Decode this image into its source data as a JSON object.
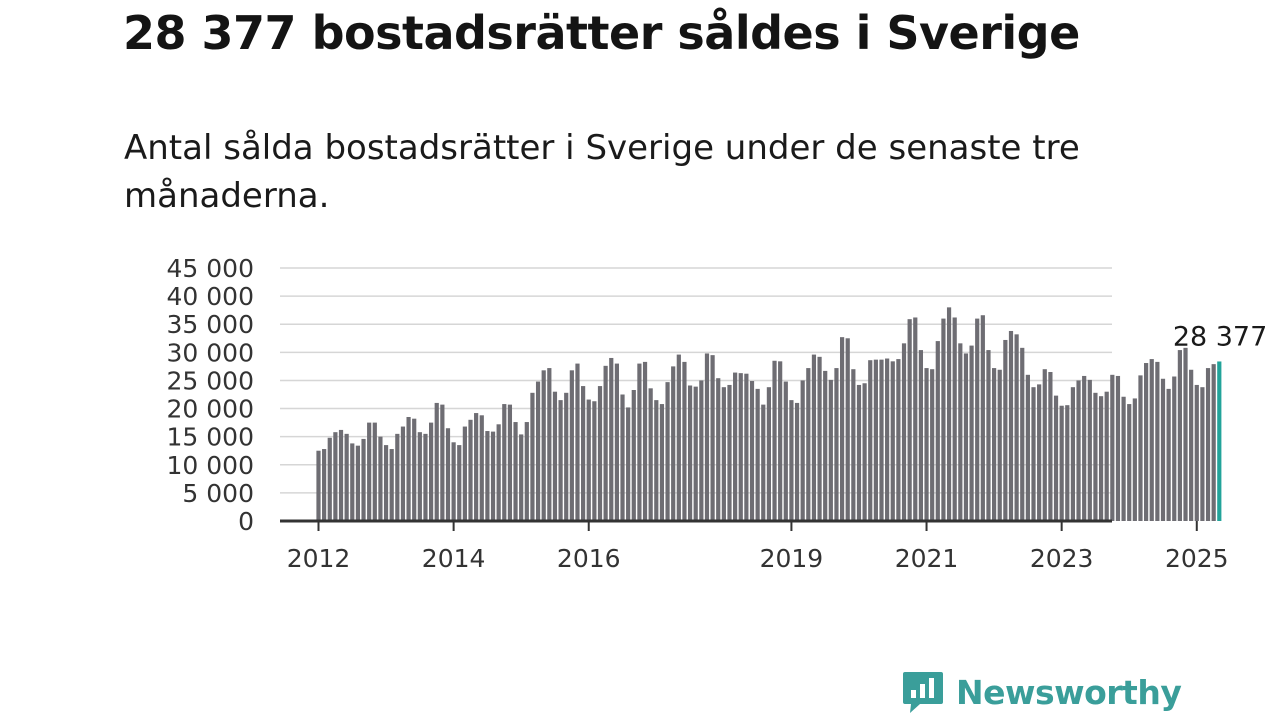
{
  "title": "28 377 bostadsrätter såldes i Sverige",
  "subtitle": "Antal sålda bostadsrätter i Sverige under de senaste tre månaderna.",
  "brand": {
    "name": "Newsworthy",
    "color": "#3a9e9a",
    "icon": "bar-chart-speech-bubble-icon"
  },
  "chart_data": {
    "type": "bar",
    "start": "2012-01",
    "ylim": [
      0,
      45000
    ],
    "yticks": [
      0,
      5000,
      10000,
      15000,
      20000,
      25000,
      30000,
      35000,
      40000,
      45000
    ],
    "ytick_labels": [
      "0",
      "5 000",
      "10 000",
      "15 000",
      "20 000",
      "25 000",
      "30 000",
      "35 000",
      "40 000",
      "45 000"
    ],
    "xticks": [
      "2012",
      "2014",
      "2016",
      "2019",
      "2021",
      "2023",
      "2025"
    ],
    "grid": true,
    "bar_color": "#6e6d73",
    "highlight_color": "#22a39a",
    "highlight_label": "28 377",
    "values": [
      12500,
      12800,
      14800,
      15800,
      16200,
      15500,
      13800,
      13400,
      14600,
      17500,
      17500,
      15000,
      13500,
      12800,
      15500,
      16800,
      18500,
      18200,
      15800,
      15500,
      17500,
      21000,
      20700,
      16500,
      14000,
      13500,
      16800,
      18000,
      19200,
      18800,
      16000,
      15900,
      17200,
      20800,
      20700,
      17600,
      15400,
      17600,
      22800,
      24800,
      26800,
      27200,
      23000,
      21500,
      22800,
      26800,
      28000,
      24000,
      21600,
      21300,
      24000,
      27600,
      29000,
      28000,
      22500,
      20200,
      23300,
      28000,
      28300,
      23600,
      21500,
      20800,
      24700,
      27500,
      29600,
      28300,
      24100,
      23900,
      25000,
      29800,
      29500,
      25400,
      23800,
      24200,
      26400,
      26300,
      26200,
      24900,
      23500,
      20700,
      23800,
      28500,
      28400,
      24800,
      21500,
      21000,
      25000,
      27200,
      29600,
      29200,
      26700,
      25100,
      27200,
      32700,
      32500,
      27000,
      24200,
      24500,
      28600,
      28700,
      28700,
      28900,
      28400,
      28800,
      31600,
      35900,
      36200,
      30400,
      27200,
      27000,
      32000,
      36000,
      38000,
      36200,
      31600,
      29800,
      31200,
      36000,
      36600,
      30400,
      27200,
      26900,
      32200,
      33800,
      33200,
      30800,
      26000,
      23800,
      24300,
      27000,
      26500,
      22300,
      20500,
      20600,
      23800,
      25000,
      25800,
      25100,
      22800,
      22200,
      23000,
      26000,
      25800,
      22100,
      20800,
      21800,
      25900,
      28100,
      28800,
      28300,
      25300,
      23500,
      25700,
      30400,
      30800,
      26900,
      24200,
      23800,
      27200,
      27900,
      28377
    ]
  }
}
